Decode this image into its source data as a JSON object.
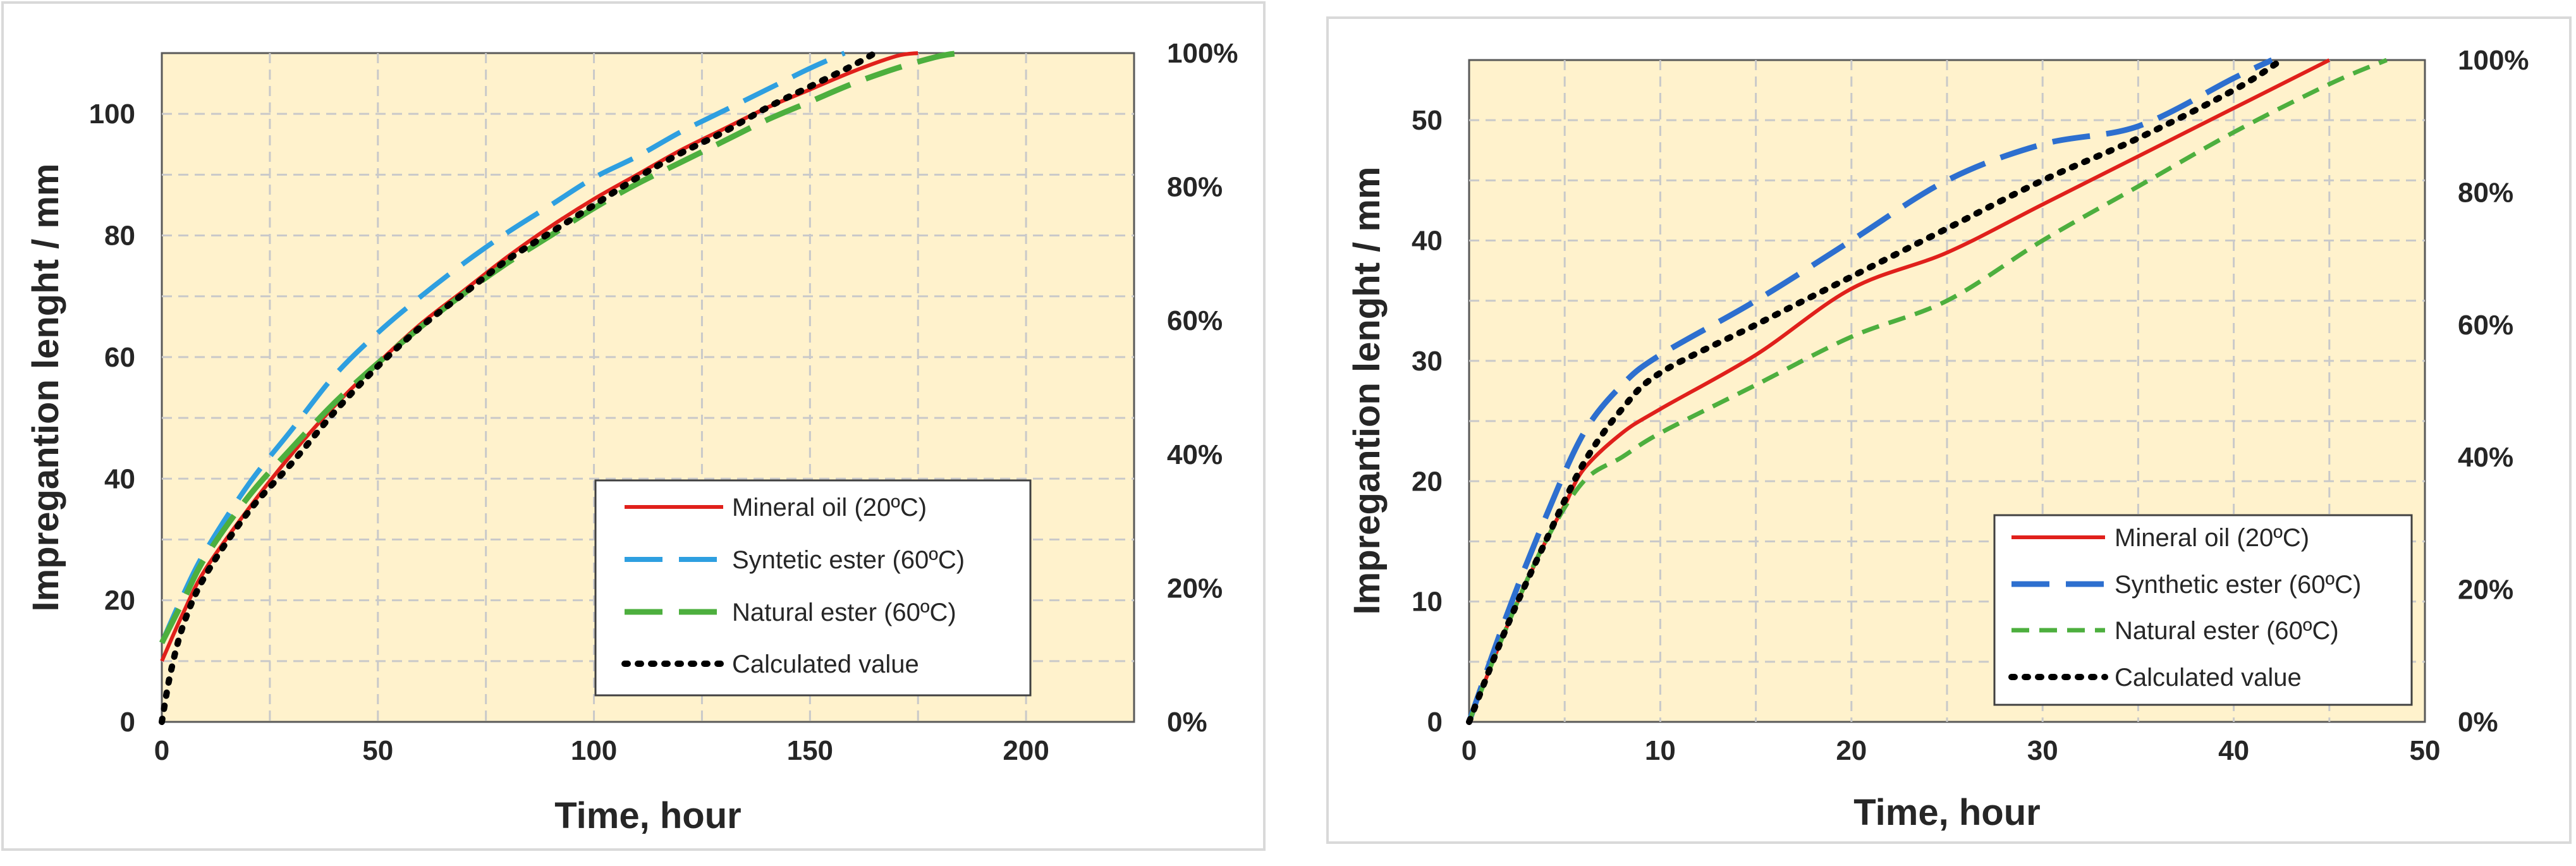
{
  "chart_data": [
    {
      "type": "line",
      "title": "",
      "xlabel": "Time, hour",
      "ylabel": "Impregantion lenght / mm",
      "xlim": [
        0,
        225
      ],
      "ylim": [
        0,
        110
      ],
      "x_ticks": [
        0,
        50,
        100,
        150,
        200
      ],
      "y_ticks": [
        0,
        20,
        40,
        60,
        80,
        100
      ],
      "secondary_y_ticks": [
        "0%",
        "20%",
        "40%",
        "60%",
        "80%",
        "100%"
      ],
      "grid": true,
      "background": "#FFF2CC",
      "legend_position": "bottom-right",
      "series": [
        {
          "name": "Mineral oil (20ºC)",
          "color": "#E0201B",
          "style": "solid",
          "x": [
            0,
            5,
            10,
            20,
            30,
            40,
            50,
            60,
            70,
            80,
            90,
            100,
            110,
            120,
            130,
            140,
            150,
            160,
            170,
            175
          ],
          "y": [
            10,
            18,
            25,
            35,
            44,
            52,
            59,
            65.5,
            71,
            76.5,
            81.5,
            86,
            90,
            94,
            97.5,
            101,
            104,
            107,
            109.5,
            110
          ]
        },
        {
          "name": "Syntetic ester (60ºC)",
          "color": "#2E9FE0",
          "style": "dashed",
          "x": [
            0,
            5,
            10,
            20,
            30,
            40,
            50,
            60,
            70,
            80,
            90,
            100,
            110,
            120,
            130,
            140,
            150,
            158
          ],
          "y": [
            13,
            21,
            28,
            39,
            48,
            57,
            64,
            70,
            75.5,
            80.5,
            85,
            89.5,
            93,
            97,
            100.5,
            104,
            107.5,
            110
          ]
        },
        {
          "name": "Natural ester (60ºC)",
          "color": "#4DAF3E",
          "style": "dashed",
          "x": [
            0,
            5,
            10,
            20,
            30,
            40,
            50,
            60,
            70,
            80,
            90,
            100,
            110,
            120,
            130,
            140,
            150,
            160,
            170,
            180,
            185
          ],
          "y": [
            13,
            20,
            27,
            37,
            45,
            52.5,
            59,
            65,
            70.5,
            75.5,
            80,
            84.5,
            88.5,
            92,
            95.5,
            99,
            102,
            105,
            107.5,
            109.5,
            110
          ]
        },
        {
          "name": "Calculated value",
          "color": "#000000",
          "style": "dotted",
          "x": [
            0,
            2,
            5,
            10,
            20,
            30,
            40,
            50,
            60,
            70,
            80,
            90,
            100,
            110,
            120,
            130,
            140,
            150,
            160,
            165
          ],
          "y": [
            0,
            8,
            16,
            24,
            34.5,
            42.5,
            51,
            58.5,
            65,
            70.5,
            76,
            80.5,
            85,
            89.5,
            93.5,
            97,
            101,
            104.5,
            108,
            110
          ]
        }
      ]
    },
    {
      "type": "line",
      "title": "",
      "xlabel": "Time, hour",
      "ylabel": "Impregantion lenght / mm",
      "xlim": [
        0,
        50
      ],
      "ylim": [
        0,
        55
      ],
      "x_ticks": [
        0,
        10,
        20,
        30,
        40,
        50
      ],
      "y_ticks": [
        0,
        10,
        20,
        30,
        40,
        50
      ],
      "secondary_y_ticks": [
        "0%",
        "20%",
        "40%",
        "60%",
        "80%",
        "100%"
      ],
      "grid": true,
      "background": "#FFF2CC",
      "legend_position": "bottom-right",
      "series": [
        {
          "name": "Mineral oil (20ºC)",
          "color": "#E0201B",
          "style": "solid",
          "x": [
            0,
            2,
            4,
            5,
            6,
            8,
            10,
            15,
            20,
            25,
            30,
            35,
            40,
            45
          ],
          "y": [
            0,
            8,
            15,
            18,
            21,
            24,
            26,
            30.5,
            36,
            39,
            43,
            47,
            51,
            55
          ]
        },
        {
          "name": "Synthetic ester (60ºC)",
          "color": "#2D6FCF",
          "style": "dashed",
          "x": [
            0,
            2,
            4,
            6,
            8,
            10,
            15,
            20,
            25,
            30,
            35,
            40,
            42
          ],
          "y": [
            0,
            9,
            17,
            24,
            28,
            30.5,
            35,
            40,
            45,
            48,
            49.5,
            53.5,
            55
          ]
        },
        {
          "name": "Natural ester (60ºC)",
          "color": "#4DAF3E",
          "style": "dashed",
          "x": [
            0,
            2,
            4,
            6,
            8,
            10,
            15,
            20,
            25,
            30,
            35,
            40,
            45,
            48
          ],
          "y": [
            0,
            8,
            15,
            20,
            22,
            24,
            28,
            32,
            35,
            40,
            44.5,
            49,
            53,
            55
          ]
        },
        {
          "name": "Calculated value",
          "color": "#000000",
          "style": "dotted",
          "x": [
            0,
            2,
            4,
            6,
            8,
            10,
            15,
            20,
            25,
            30,
            35,
            40,
            42.5
          ],
          "y": [
            0,
            8,
            15,
            21.5,
            26,
            29,
            33,
            37,
            41,
            45,
            48.5,
            52.5,
            55
          ]
        }
      ]
    }
  ]
}
